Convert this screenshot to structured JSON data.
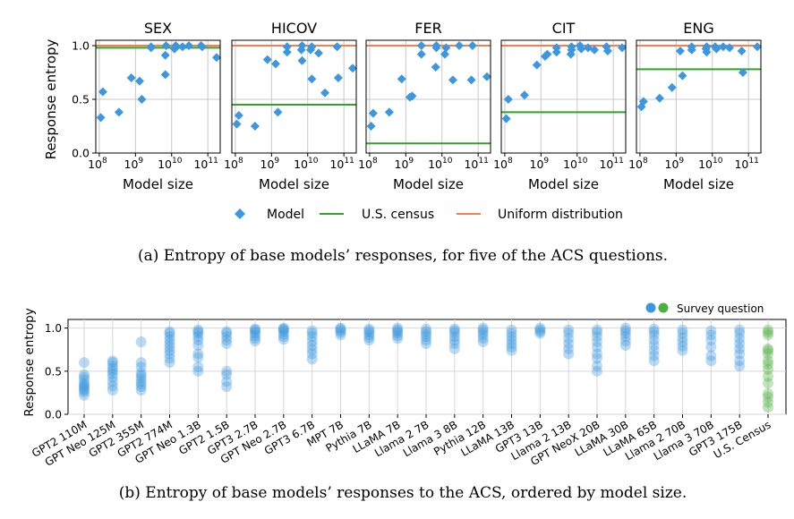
{
  "top_caption": "(a) Entropy of base models’ responses, for five of the ACS questions.",
  "bottom_caption": "(b) Entropy of base models’ responses to the ACS, ordered by model size.",
  "legend_top": {
    "model": "Model",
    "census": "U.S. census",
    "uniform": "Uniform distribution"
  },
  "legend_bottom": "Survey question",
  "colors": {
    "model": "#3d97e0",
    "census": "#33a02c",
    "uniform": "#f08050",
    "census_dots": "#4caf3f"
  },
  "chart_data": [
    {
      "type": "scatter",
      "title": "SEX",
      "xlabel": "Model size",
      "ylabel": "Response entropy",
      "x_scale": "log",
      "xlim": [
        80000000.0,
        220000000000.0
      ],
      "ylim": [
        0,
        1.05
      ],
      "x_ticks": [
        "10^8",
        "10^9",
        "10^10",
        "10^11"
      ],
      "y_ticks": [
        "0.0",
        "0.5",
        "1.0"
      ],
      "census": 0.98,
      "uniform": 1.0,
      "points": [
        [
          110000000.0,
          0.33
        ],
        [
          125000000.0,
          0.57
        ],
        [
          350000000.0,
          0.38
        ],
        [
          770000000.0,
          0.7
        ],
        [
          1300000000.0,
          0.67
        ],
        [
          1500000000.0,
          0.5
        ],
        [
          2700000000.0,
          0.99
        ],
        [
          2700000000.0,
          0.98
        ],
        [
          6700000000.0,
          0.73
        ],
        [
          6700000000.0,
          0.91
        ],
        [
          7000000000.0,
          1.0
        ],
        [
          12000000000.0,
          0.97
        ],
        [
          13000000000.0,
          1.0
        ],
        [
          20000000000.0,
          0.99
        ],
        [
          30000000000.0,
          1.0
        ],
        [
          65000000000.0,
          1.0
        ],
        [
          70000000000.0,
          0.99
        ],
        [
          175000000000.0,
          0.89
        ]
      ]
    },
    {
      "type": "scatter",
      "title": "HICOV",
      "xlabel": "Model size",
      "x_scale": "log",
      "xlim": [
        80000000.0,
        220000000000.0
      ],
      "ylim": [
        0,
        1.05
      ],
      "x_ticks": [
        "10^8",
        "10^9",
        "10^10",
        "10^11"
      ],
      "census": 0.45,
      "uniform": 1.0,
      "points": [
        [
          110000000.0,
          0.27
        ],
        [
          125000000.0,
          0.35
        ],
        [
          350000000.0,
          0.25
        ],
        [
          770000000.0,
          0.87
        ],
        [
          1300000000.0,
          0.83
        ],
        [
          1500000000.0,
          0.38
        ],
        [
          2700000000.0,
          0.94
        ],
        [
          2700000000.0,
          0.99
        ],
        [
          6700000000.0,
          0.96
        ],
        [
          7000000000.0,
          0.86
        ],
        [
          7000000000.0,
          1.0
        ],
        [
          12000000000.0,
          0.96
        ],
        [
          13000000000.0,
          0.69
        ],
        [
          13000000000.0,
          0.99
        ],
        [
          20000000000.0,
          0.93
        ],
        [
          30000000000.0,
          0.56
        ],
        [
          65000000000.0,
          0.99
        ],
        [
          70000000000.0,
          0.7
        ],
        [
          175000000000.0,
          0.79
        ]
      ]
    },
    {
      "type": "scatter",
      "title": "FER",
      "xlabel": "Model size",
      "x_scale": "log",
      "xlim": [
        80000000.0,
        220000000000.0
      ],
      "ylim": [
        0,
        1.05
      ],
      "x_ticks": [
        "10^8",
        "10^9",
        "10^10",
        "10^11"
      ],
      "census": 0.09,
      "uniform": 1.0,
      "points": [
        [
          110000000.0,
          0.25
        ],
        [
          125000000.0,
          0.37
        ],
        [
          350000000.0,
          0.38
        ],
        [
          770000000.0,
          0.69
        ],
        [
          1300000000.0,
          0.52
        ],
        [
          1500000000.0,
          0.53
        ],
        [
          2700000000.0,
          0.92
        ],
        [
          2700000000.0,
          1.0
        ],
        [
          6700000000.0,
          0.8
        ],
        [
          7000000000.0,
          1.0
        ],
        [
          7000000000.0,
          0.98
        ],
        [
          12000000000.0,
          0.92
        ],
        [
          13000000000.0,
          0.98
        ],
        [
          20000000000.0,
          0.68
        ],
        [
          30000000000.0,
          1.0
        ],
        [
          65000000000.0,
          0.68
        ],
        [
          70000000000.0,
          1.0
        ],
        [
          175000000000.0,
          0.71
        ]
      ]
    },
    {
      "type": "scatter",
      "title": "CIT",
      "xlabel": "Model size",
      "x_scale": "log",
      "xlim": [
        80000000.0,
        220000000000.0
      ],
      "ylim": [
        0,
        1.05
      ],
      "x_ticks": [
        "10^8",
        "10^9",
        "10^10",
        "10^11"
      ],
      "census": 0.38,
      "uniform": 1.0,
      "points": [
        [
          110000000.0,
          0.32
        ],
        [
          125000000.0,
          0.5
        ],
        [
          350000000.0,
          0.54
        ],
        [
          770000000.0,
          0.82
        ],
        [
          1300000000.0,
          0.9
        ],
        [
          1500000000.0,
          0.92
        ],
        [
          2700000000.0,
          0.98
        ],
        [
          2700000000.0,
          0.94
        ],
        [
          6700000000.0,
          0.92
        ],
        [
          7000000000.0,
          0.96
        ],
        [
          7000000000.0,
          0.99
        ],
        [
          12000000000.0,
          1.0
        ],
        [
          13000000000.0,
          0.97
        ],
        [
          20000000000.0,
          0.98
        ],
        [
          30000000000.0,
          0.96
        ],
        [
          65000000000.0,
          0.99
        ],
        [
          70000000000.0,
          0.95
        ],
        [
          175000000000.0,
          0.98
        ]
      ]
    },
    {
      "type": "scatter",
      "title": "ENG",
      "xlabel": "Model size",
      "x_scale": "log",
      "xlim": [
        80000000.0,
        220000000000.0
      ],
      "ylim": [
        0,
        1.05
      ],
      "x_ticks": [
        "10^8",
        "10^9",
        "10^10",
        "10^11"
      ],
      "census": 0.78,
      "uniform": 1.0,
      "points": [
        [
          110000000.0,
          0.43
        ],
        [
          125000000.0,
          0.48
        ],
        [
          350000000.0,
          0.51
        ],
        [
          770000000.0,
          0.61
        ],
        [
          1300000000.0,
          0.95
        ],
        [
          1500000000.0,
          0.72
        ],
        [
          2700000000.0,
          0.96
        ],
        [
          2700000000.0,
          0.99
        ],
        [
          6700000000.0,
          0.97
        ],
        [
          7000000000.0,
          0.94
        ],
        [
          7000000000.0,
          0.99
        ],
        [
          12000000000.0,
          0.99
        ],
        [
          13000000000.0,
          0.97
        ],
        [
          20000000000.0,
          0.99
        ],
        [
          30000000000.0,
          0.98
        ],
        [
          65000000000.0,
          0.95
        ],
        [
          70000000000.0,
          0.75
        ],
        [
          175000000000.0,
          0.99
        ]
      ]
    },
    {
      "type": "scatter",
      "title": "",
      "ylabel": "Response entropy",
      "ylim": [
        0,
        1.1
      ],
      "y_ticks": [
        "0.0",
        "0.5",
        "1.0"
      ],
      "legend": "Survey question",
      "categories": [
        "GPT2 110M",
        "GPT Neo 125M",
        "GPT2 355M",
        "GPT2 774M",
        "GPT Neo 1.3B",
        "GPT2 1.5B",
        "GPT3 2.7B",
        "GPT Neo 2.7B",
        "GPT3 6.7B",
        "MPT 7B",
        "Pythia 7B",
        "LLaMA 7B",
        "Llama 2 7B",
        "Llama 3 8B",
        "Pythia 12B",
        "LLaMA 13B",
        "GPT3 13B",
        "Llama 2 13B",
        "GPT NeoX 20B",
        "LLaMA 30B",
        "LLaMA 65B",
        "Llama 2 70B",
        "Llama 3 70B",
        "GPT3 175B",
        "U.S. Census"
      ],
      "values": [
        [
          0.22,
          0.26,
          0.28,
          0.3,
          0.32,
          0.34,
          0.36,
          0.4,
          0.43,
          0.46,
          0.6
        ],
        [
          0.28,
          0.33,
          0.38,
          0.43,
          0.47,
          0.5,
          0.53,
          0.56,
          0.6,
          0.62
        ],
        [
          0.28,
          0.32,
          0.35,
          0.38,
          0.42,
          0.45,
          0.48,
          0.55,
          0.6,
          0.84
        ],
        [
          0.6,
          0.65,
          0.7,
          0.74,
          0.78,
          0.82,
          0.86,
          0.9,
          0.94,
          0.96
        ],
        [
          0.5,
          0.55,
          0.66,
          0.7,
          0.8,
          0.86,
          0.9,
          0.94,
          0.96,
          0.98
        ],
        [
          0.32,
          0.38,
          0.46,
          0.5,
          0.82,
          0.86,
          0.9,
          0.94,
          0.96
        ],
        [
          0.85,
          0.88,
          0.91,
          0.94,
          0.96,
          0.98,
          0.99
        ],
        [
          0.87,
          0.9,
          0.93,
          0.96,
          0.98,
          0.99,
          1.0
        ],
        [
          0.64,
          0.7,
          0.75,
          0.8,
          0.85,
          0.9,
          0.94,
          0.97
        ],
        [
          0.92,
          0.95,
          0.97,
          0.99,
          1.0
        ],
        [
          0.86,
          0.89,
          0.92,
          0.95,
          0.97,
          0.99
        ],
        [
          0.88,
          0.91,
          0.94,
          0.96,
          0.98,
          1.0
        ],
        [
          0.82,
          0.86,
          0.9,
          0.93,
          0.96,
          0.99
        ],
        [
          0.76,
          0.82,
          0.86,
          0.9,
          0.94,
          0.97,
          0.99
        ],
        [
          0.84,
          0.88,
          0.92,
          0.95,
          0.98,
          1.0
        ],
        [
          0.74,
          0.78,
          0.82,
          0.86,
          0.9,
          0.94,
          0.98
        ],
        [
          0.94,
          0.96,
          0.98,
          1.0
        ],
        [
          0.7,
          0.76,
          0.82,
          0.88,
          0.94,
          0.98
        ],
        [
          0.5,
          0.56,
          0.65,
          0.7,
          0.78,
          0.84,
          0.9,
          0.95,
          0.98
        ],
        [
          0.8,
          0.85,
          0.9,
          0.94,
          0.97,
          1.0
        ],
        [
          0.62,
          0.68,
          0.74,
          0.8,
          0.86,
          0.92,
          0.96,
          0.99
        ],
        [
          0.74,
          0.79,
          0.84,
          0.89,
          0.94,
          0.98
        ],
        [
          0.62,
          0.68,
          0.78,
          0.86,
          0.92,
          0.97
        ],
        [
          0.56,
          0.62,
          0.7,
          0.76,
          0.82,
          0.88,
          0.94,
          0.98
        ],
        [
          0.08,
          0.14,
          0.2,
          0.24,
          0.36,
          0.44,
          0.52,
          0.58,
          0.62,
          0.7,
          0.74,
          0.76,
          0.92,
          0.95,
          0.98
        ]
      ]
    }
  ]
}
